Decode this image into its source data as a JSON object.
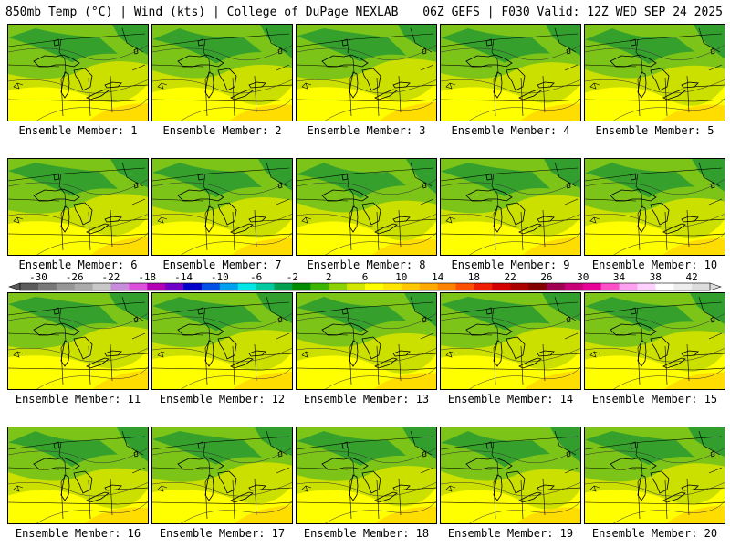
{
  "header": {
    "left": "850mb Temp (°C) | Wind (kts) | College of DuPage NEXLAB",
    "right": "06Z GEFS | F030 Valid: 12Z WED SEP 24 2025"
  },
  "panels": [
    {
      "member": 1,
      "label": "Ensemble Member: 1"
    },
    {
      "member": 2,
      "label": "Ensemble Member: 2"
    },
    {
      "member": 3,
      "label": "Ensemble Member: 3"
    },
    {
      "member": 4,
      "label": "Ensemble Member: 4"
    },
    {
      "member": 5,
      "label": "Ensemble Member: 5"
    },
    {
      "member": 6,
      "label": "Ensemble Member: 6"
    },
    {
      "member": 7,
      "label": "Ensemble Member: 7"
    },
    {
      "member": 8,
      "label": "Ensemble Member: 8"
    },
    {
      "member": 9,
      "label": "Ensemble Member: 9"
    },
    {
      "member": 10,
      "label": "Ensemble Member: 10"
    },
    {
      "member": 11,
      "label": "Ensemble Member: 11"
    },
    {
      "member": 12,
      "label": "Ensemble Member: 12"
    },
    {
      "member": 13,
      "label": "Ensemble Member: 13"
    },
    {
      "member": 14,
      "label": "Ensemble Member: 14"
    },
    {
      "member": 15,
      "label": "Ensemble Member: 15"
    },
    {
      "member": 16,
      "label": "Ensemble Member: 16"
    },
    {
      "member": 17,
      "label": "Ensemble Member: 17"
    },
    {
      "member": 18,
      "label": "Ensemble Member: 18"
    },
    {
      "member": 19,
      "label": "Ensemble Member: 19"
    },
    {
      "member": 20,
      "label": "Ensemble Member: 20"
    }
  ],
  "colorbar": {
    "min": -32,
    "max": 44,
    "step": 2,
    "tick_labels": [
      "-30",
      "-26",
      "-22",
      "-18",
      "-14",
      "-10",
      "-6",
      "-2",
      "2",
      "6",
      "10",
      "14",
      "18",
      "22",
      "26",
      "30",
      "34",
      "38",
      "42"
    ],
    "colors": [
      "#5a5a5a",
      "#787878",
      "#969696",
      "#aaaaaa",
      "#c8c8c8",
      "#c88cdc",
      "#dc50dc",
      "#b400b4",
      "#6e00c8",
      "#0000c8",
      "#0050e6",
      "#00a0f0",
      "#00e6e6",
      "#00c8a0",
      "#00a050",
      "#008c00",
      "#3cb400",
      "#8cd200",
      "#d2e600",
      "#ffff00",
      "#ffe600",
      "#ffc800",
      "#ffaa00",
      "#ff8200",
      "#ff5000",
      "#f01e00",
      "#d20000",
      "#aa0000",
      "#820000",
      "#a00050",
      "#c80078",
      "#e60096",
      "#ff50c8",
      "#ffa0f0",
      "#ffd2ff",
      "#ffffff",
      "#eeeeee",
      "#dddddd"
    ],
    "sample_colors": {
      "warm": "#ffff00",
      "mild": "#cce000",
      "cool": "#7cc418",
      "cold": "#2a9a30"
    }
  }
}
